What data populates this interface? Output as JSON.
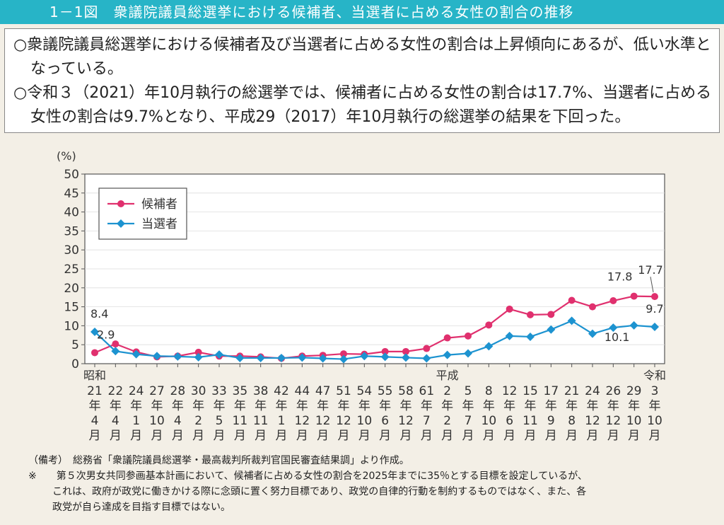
{
  "header": {
    "title": "1－1図　衆議院議員総選挙における候補者、当選者に占める女性の割合の推移"
  },
  "summary": [
    "○衆議院議員総選挙における候補者及び当選者に占める女性の割合は上昇傾向にあるが、低い水準となっている。",
    "○令和３（2021）年10月執行の総選挙では、候補者に占める女性の割合は17.7%、当選者に占める女性の割合は9.7%となり、平成29（2017）年10月執行の総選挙の結果を下回った。"
  ],
  "chart_data": {
    "type": "line",
    "ylabel": "(%)",
    "ylim": [
      0,
      50
    ],
    "yticks": [
      0,
      5,
      10,
      15,
      20,
      25,
      30,
      35,
      40,
      45,
      50
    ],
    "era_labels": [
      {
        "label": "昭和",
        "index": 0
      },
      {
        "label": "平成",
        "index": 17
      },
      {
        "label": "令和",
        "index": 27
      }
    ],
    "categories": [
      [
        "21",
        "年",
        "4",
        "月"
      ],
      [
        "22",
        "年",
        "4",
        "月"
      ],
      [
        "24",
        "年",
        "1",
        "月"
      ],
      [
        "27",
        "年",
        "10",
        "月"
      ],
      [
        "28",
        "年",
        "4",
        "月"
      ],
      [
        "30",
        "年",
        "2",
        "月"
      ],
      [
        "33",
        "年",
        "5",
        "月"
      ],
      [
        "35",
        "年",
        "11",
        "月"
      ],
      [
        "38",
        "年",
        "11",
        "月"
      ],
      [
        "42",
        "年",
        "1",
        "月"
      ],
      [
        "44",
        "年",
        "12",
        "月"
      ],
      [
        "47",
        "年",
        "12",
        "月"
      ],
      [
        "51",
        "年",
        "12",
        "月"
      ],
      [
        "54",
        "年",
        "10",
        "月"
      ],
      [
        "55",
        "年",
        "6",
        "月"
      ],
      [
        "58",
        "年",
        "12",
        "月"
      ],
      [
        "61",
        "年",
        "7",
        "月"
      ],
      [
        "2",
        "年",
        "2",
        "月"
      ],
      [
        "5",
        "年",
        "7",
        "月"
      ],
      [
        "8",
        "年",
        "10",
        "月"
      ],
      [
        "12",
        "年",
        "6",
        "月"
      ],
      [
        "15",
        "年",
        "11",
        "月"
      ],
      [
        "17",
        "年",
        "9",
        "月"
      ],
      [
        "21",
        "年",
        "8",
        "月"
      ],
      [
        "24",
        "年",
        "12",
        "月"
      ],
      [
        "26",
        "年",
        "12",
        "月"
      ],
      [
        "29",
        "年",
        "10",
        "月"
      ],
      [
        "3",
        "年",
        "10",
        "月"
      ]
    ],
    "legend_position": "top-left",
    "series": [
      {
        "name": "候補者",
        "color": "#e0306e",
        "marker": "circle",
        "values": [
          2.9,
          5.2,
          3.1,
          1.8,
          2.0,
          3.0,
          2.0,
          2.0,
          1.8,
          1.4,
          2.0,
          2.2,
          2.6,
          2.5,
          3.2,
          3.2,
          4.0,
          6.8,
          7.3,
          10.2,
          14.4,
          12.9,
          13.0,
          16.7,
          15.0,
          16.6,
          17.8,
          17.7
        ]
      },
      {
        "name": "当選者",
        "color": "#1d93d0",
        "marker": "diamond",
        "values": [
          8.4,
          3.3,
          2.5,
          2.0,
          1.9,
          1.7,
          2.4,
          1.5,
          1.5,
          1.5,
          1.6,
          1.4,
          1.2,
          2.0,
          1.8,
          1.6,
          1.4,
          2.3,
          2.7,
          4.6,
          7.3,
          7.1,
          9.0,
          11.3,
          7.9,
          9.5,
          10.1,
          9.7
        ]
      }
    ],
    "annotations": [
      {
        "series": 1,
        "index": 0,
        "text": "8.4"
      },
      {
        "series": 0,
        "index": 0,
        "text": "2.9"
      },
      {
        "series": 0,
        "index": 26,
        "text": "17.8"
      },
      {
        "series": 0,
        "index": 27,
        "text": "17.7"
      },
      {
        "series": 1,
        "index": 26,
        "text": "10.1"
      },
      {
        "series": 1,
        "index": 27,
        "text": "9.7"
      }
    ]
  },
  "notes": {
    "source": "（備考）　総務省「衆議院議員総選挙・最高裁判所裁判官国民審査結果調」より作成。",
    "note_mark": "※",
    "note_lines": [
      "第５次男女共同参画基本計画において、候補者に占める女性の割合を2025年までに35％とする目標を設定しているが、",
      "これは、政府が政党に働きかける際に念頭に置く努力目標であり、政党の自律的行動を制約するものではなく、また、各",
      "政党が自ら達成を目指す目標ではない。"
    ]
  }
}
